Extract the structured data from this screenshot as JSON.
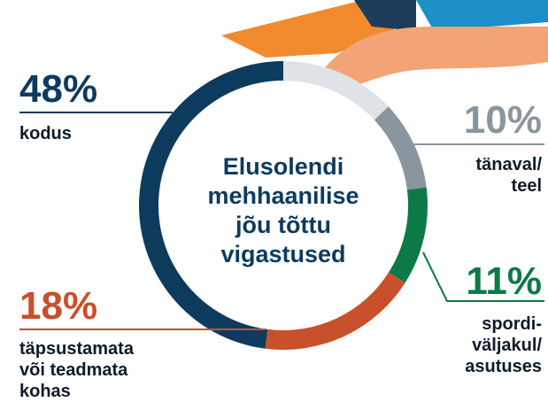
{
  "chart_data": {
    "type": "donut",
    "title": [
      "Elusolendi",
      "mehhaanilise",
      "jõu tõttu",
      "vigastused"
    ],
    "categories": [
      null,
      [
        "tänaval/",
        "teel"
      ],
      [
        "spordi-",
        "väljakul/",
        "asutuses"
      ],
      [
        "täpsustamata",
        "või teadmata",
        "kohas"
      ],
      [
        "kodus"
      ]
    ],
    "values": [
      13,
      10,
      11,
      18,
      48
    ],
    "value_labels": [
      null,
      "10%",
      "11%",
      "18%",
      "48%"
    ],
    "colors": [
      "#dfe3e7",
      "#8a969e",
      "#0b7a46",
      "#c8502a",
      "#0d3b5e"
    ]
  }
}
